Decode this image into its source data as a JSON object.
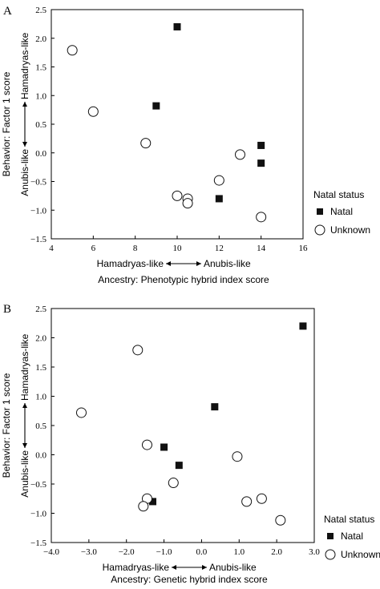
{
  "chart_data": [
    {
      "panel_letter": "A",
      "type": "scatter",
      "xlabel": "Ancestry: Phenotypic hybrid index score",
      "ylabel": "Behavior: Factor 1 score",
      "x_low_label": "Hamadryas-like",
      "x_high_label": "Anubis-like",
      "y_low_label": "Anubis-like",
      "y_high_label": "Hamadryas-like",
      "xlim": [
        4,
        16
      ],
      "ylim": [
        -1.5,
        2.5
      ],
      "xticks": [
        "4",
        "6",
        "8",
        "10",
        "12",
        "14",
        "16"
      ],
      "yticks": [
        "-1.5",
        "-1.0",
        "-0.5",
        "0.0",
        "0.5",
        "1.0",
        "1.5",
        "2.0",
        "2.5"
      ],
      "legend_title": "Natal status",
      "series": [
        {
          "name": "Natal",
          "marker": "square",
          "x": [
            10,
            9,
            14,
            14,
            12
          ],
          "y": [
            2.2,
            0.82,
            0.13,
            -0.18,
            -0.8
          ]
        },
        {
          "name": "Unknown",
          "marker": "circle",
          "x": [
            5,
            6,
            8.5,
            13,
            12,
            10,
            10.5,
            10.5,
            14
          ],
          "y": [
            1.79,
            0.72,
            0.17,
            -0.03,
            -0.48,
            -0.75,
            -0.8,
            -0.88,
            -1.12
          ]
        }
      ]
    },
    {
      "panel_letter": "B",
      "type": "scatter",
      "xlabel": "Ancestry: Genetic hybrid index score",
      "ylabel": "Behavior: Factor 1 score",
      "x_low_label": "Hamadryas-like",
      "x_high_label": "Anubis-like",
      "y_low_label": "Anubis-like",
      "y_high_label": "Hamadryas-like",
      "xlim": [
        -4.0,
        3.0
      ],
      "ylim": [
        -1.5,
        2.5
      ],
      "xticks": [
        "-4.0",
        "-3.0",
        "-2.0",
        "-1.0",
        "0.0",
        "1.0",
        "2.0",
        "3.0"
      ],
      "yticks": [
        "-1.5",
        "-1.0",
        "-0.5",
        "0.0",
        "0.5",
        "1.0",
        "1.5",
        "2.0",
        "2.5"
      ],
      "legend_title": "Natal status",
      "series": [
        {
          "name": "Natal",
          "marker": "square",
          "x": [
            2.7,
            0.35,
            -1.0,
            -0.6,
            -1.3
          ],
          "y": [
            2.2,
            0.82,
            0.13,
            -0.18,
            -0.8
          ]
        },
        {
          "name": "Unknown",
          "marker": "circle",
          "x": [
            -1.7,
            -3.2,
            -1.45,
            0.95,
            -0.75,
            -1.45,
            -1.55,
            1.2,
            1.6,
            2.1
          ],
          "y": [
            1.79,
            0.72,
            0.17,
            -0.03,
            -0.48,
            -0.75,
            -0.88,
            -0.8,
            -0.75,
            -1.12
          ]
        }
      ]
    }
  ]
}
